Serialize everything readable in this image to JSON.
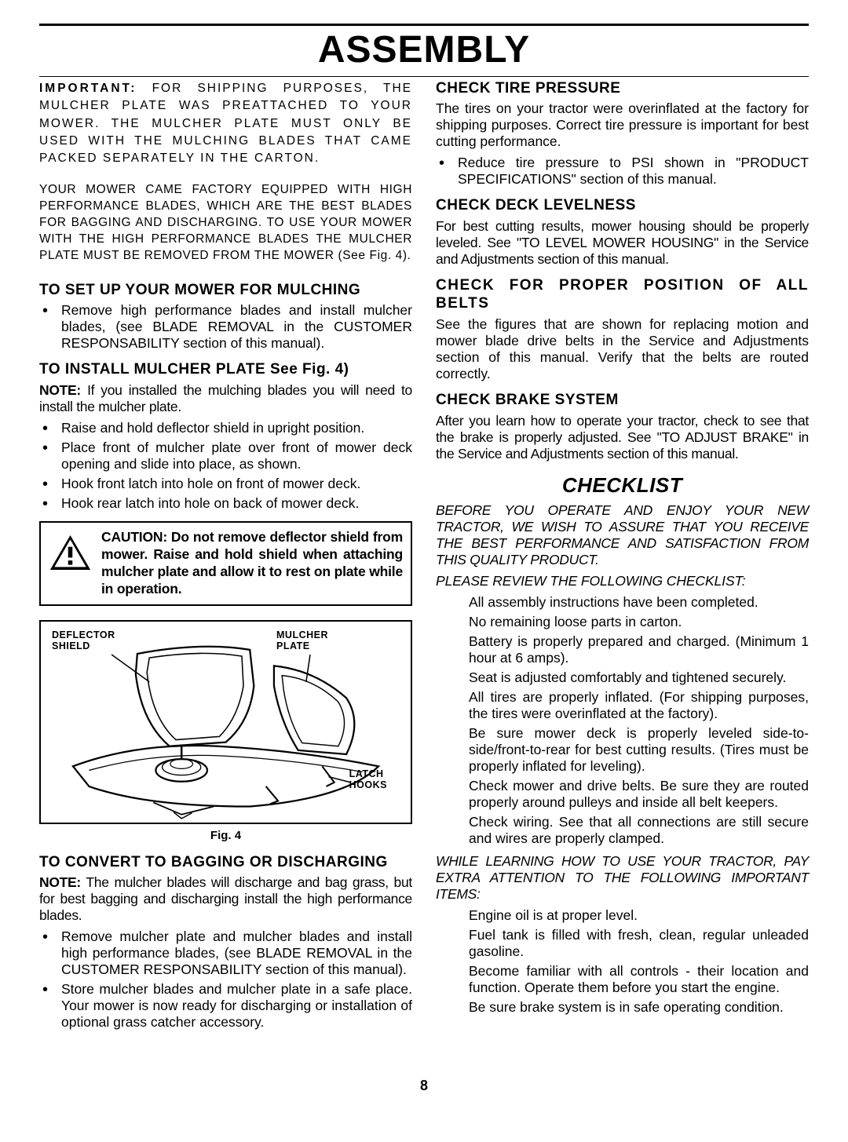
{
  "page": {
    "title": "ASSEMBLY",
    "number": "8"
  },
  "left": {
    "important": {
      "lead": "IMPORTANT:",
      "text": " FOR SHIPPING PURPOSES, THE MULCHER PLATE WAS PREATTACHED TO YOUR MOWER. THE MULCHER PLATE MUST ONLY BE USED WITH THE MULCHING BLADES THAT CAME PACKED SEPARATELY IN THE CARTON."
    },
    "info": "YOUR MOWER CAME FACTORY EQUIPPED WITH HIGH PERFORMANCE BLADES, WHICH ARE THE BEST BLADES FOR BAGGING AND DISCHARGING. TO USE YOUR MOWER WITH THE HIGH PERFORMANCE BLADES THE MULCHER PLATE MUST BE REMOVED FROM THE MOWER (See Fig. 4).",
    "setup": {
      "heading": "TO SET UP YOUR MOWER FOR MULCHING",
      "items": [
        "Remove high performance blades and install mulcher blades, (see BLADE REMOVAL in the CUSTOMER RESPONSABILITY section of this manual)."
      ]
    },
    "install": {
      "heading": "TO INSTALL MULCHER PLATE See Fig. 4)",
      "note_lead": "NOTE:",
      "note_text": " If you installed the mulching blades you will need to install the mulcher plate.",
      "items": [
        "Raise and hold deflector shield in upright position.",
        "Place front of mulcher plate over front of mower deck opening and slide into place, as shown.",
        "Hook front latch into hole on front of mower deck.",
        "Hook rear latch into hole on back of mower deck."
      ]
    },
    "caution": "CAUTION: Do not remove deflector shield from mower. Raise and hold shield when attaching mulcher plate and allow it to rest on plate while in operation.",
    "figure": {
      "label_deflector": "DEFLECTOR\nSHIELD",
      "label_mulcher": "MULCHER\nPLATE",
      "label_latch": "LATCH\nHOOKS",
      "caption": "Fig. 4"
    },
    "convert": {
      "heading": "TO CONVERT TO BAGGING OR DISCHARGING",
      "note_lead": "NOTE:",
      "note_text": " The mulcher blades will discharge and bag grass, but for best bagging and discharging install the high performance blades.",
      "items": [
        "Remove mulcher plate and mulcher blades and install high performance blades, (see BLADE REMOVAL in the CUSTOMER RESPONSABILITY section of this manual).",
        "Store mulcher blades and mulcher plate in a safe place. Your mower is now ready for discharging or installation of optional grass catcher accessory."
      ]
    }
  },
  "right": {
    "tire": {
      "heading": "CHECK TIRE PRESSURE",
      "text": "The tires on your tractor were overinflated at the factory for shipping purposes.  Correct tire pressure is important for best cutting performance.",
      "items": [
        "Reduce tire pressure to PSI shown in \"PRODUCT SPECIFICATIONS\" section of this manual."
      ]
    },
    "deck": {
      "heading": "CHECK DECK LEVELNESS",
      "text": "For best cutting results, mower housing should be properly leveled. See \"TO LEVEL MOWER HOUSING\" in the Service and Adjustments section of this manual."
    },
    "belts": {
      "heading": "CHECK FOR PROPER POSITION OF ALL BELTS",
      "text": "See the figures that are shown for replacing motion and mower blade drive belts in the Service and Adjustments section of this manual.  Verify that the belts are routed correctly."
    },
    "brake": {
      "heading": "CHECK BRAKE SYSTEM",
      "text": "After you learn how to operate your tractor, check to see that the brake is properly adjusted.  See \"TO ADJUST BRAKE\" in the Service and Adjustments section of this manual."
    },
    "checklist": {
      "heading": "CHECKLIST",
      "intro": "BEFORE YOU OPERATE AND ENJOY YOUR NEW TRACTOR, WE WISH TO ASSURE THAT YOU RECEIVE THE BEST PERFORMANCE AND SATISFACTION FROM THIS QUALITY PRODUCT.",
      "review": "PLEASE REVIEW THE FOLLOWING CHECKLIST:",
      "items1": [
        "All assembly instructions have been completed.",
        "No remaining loose parts in carton.",
        "Battery is properly prepared and charged.  (Minimum 1 hour at 6 amps).",
        "Seat is adjusted comfortably and tightened securely.",
        "All tires are properly inflated.  (For shipping purposes, the tires were overinflated at the factory).",
        "Be sure mower deck is properly leveled side-to-side/front-to-rear for best cutting results.  (Tires must be properly inflated for leveling).",
        "Check mower and drive belts.  Be sure they are routed properly around pulleys and inside all belt keepers.",
        "Check wiring.  See that all connections are still secure and wires are properly clamped."
      ],
      "learning": "WHILE LEARNING HOW TO USE YOUR TRACTOR, PAY EXTRA ATTENTION TO THE FOLLOWING IMPORTANT ITEMS:",
      "items2": [
        "Engine oil is at proper level.",
        "Fuel tank is filled with fresh, clean, regular unleaded gasoline.",
        "Become familiar with all controls - their location and function.  Operate them before you start the engine.",
        "Be sure brake system is in safe operating condition."
      ]
    }
  }
}
